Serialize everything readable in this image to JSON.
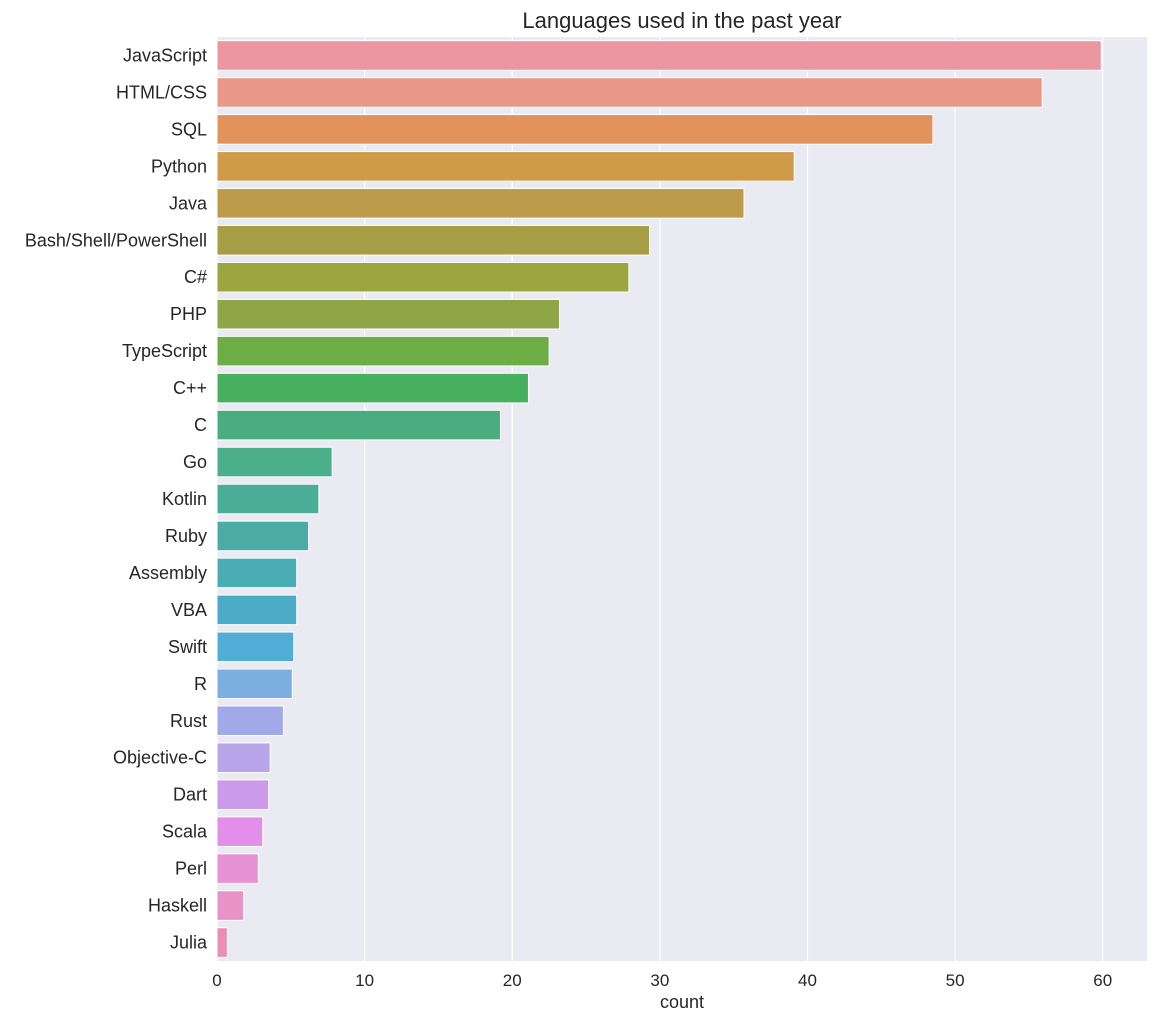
{
  "chart_data": {
    "type": "bar",
    "orientation": "horizontal",
    "title": "Languages used in the past year",
    "xlabel": "count",
    "ylabel": "",
    "xlim": [
      0,
      63
    ],
    "xticks": [
      0,
      10,
      20,
      30,
      40,
      50,
      60
    ],
    "grid": true,
    "categories": [
      "JavaScript",
      "HTML/CSS",
      "SQL",
      "Python",
      "Java",
      "Bash/Shell/PowerShell",
      "C#",
      "PHP",
      "TypeScript",
      "C++",
      "C",
      "Go",
      "Kotlin",
      "Ruby",
      "Assembly",
      "VBA",
      "Swift",
      "R",
      "Rust",
      "Objective-C",
      "Dart",
      "Scala",
      "Perl",
      "Haskell",
      "Julia"
    ],
    "values": [
      59.9,
      55.9,
      48.5,
      39.1,
      35.7,
      29.3,
      27.9,
      23.2,
      22.5,
      21.1,
      19.2,
      7.8,
      6.9,
      6.2,
      5.4,
      5.4,
      5.2,
      5.1,
      4.5,
      3.6,
      3.5,
      3.1,
      2.8,
      1.8,
      0.7
    ],
    "colors": [
      "#ec96a2",
      "#e89788",
      "#e4925c",
      "#cf9b48",
      "#bc9c4b",
      "#a69d44",
      "#9ca640",
      "#8fa648",
      "#6ead46",
      "#47b05e",
      "#4aad80",
      "#4aaf8a",
      "#49ad98",
      "#4aaca5",
      "#4aadb6",
      "#4cabc6",
      "#51acd6",
      "#7daee2",
      "#a2a9e8",
      "#b8a4e8",
      "#cb9ae8",
      "#e38ee8",
      "#e892d6",
      "#e992c5",
      "#ea8fb1"
    ]
  }
}
